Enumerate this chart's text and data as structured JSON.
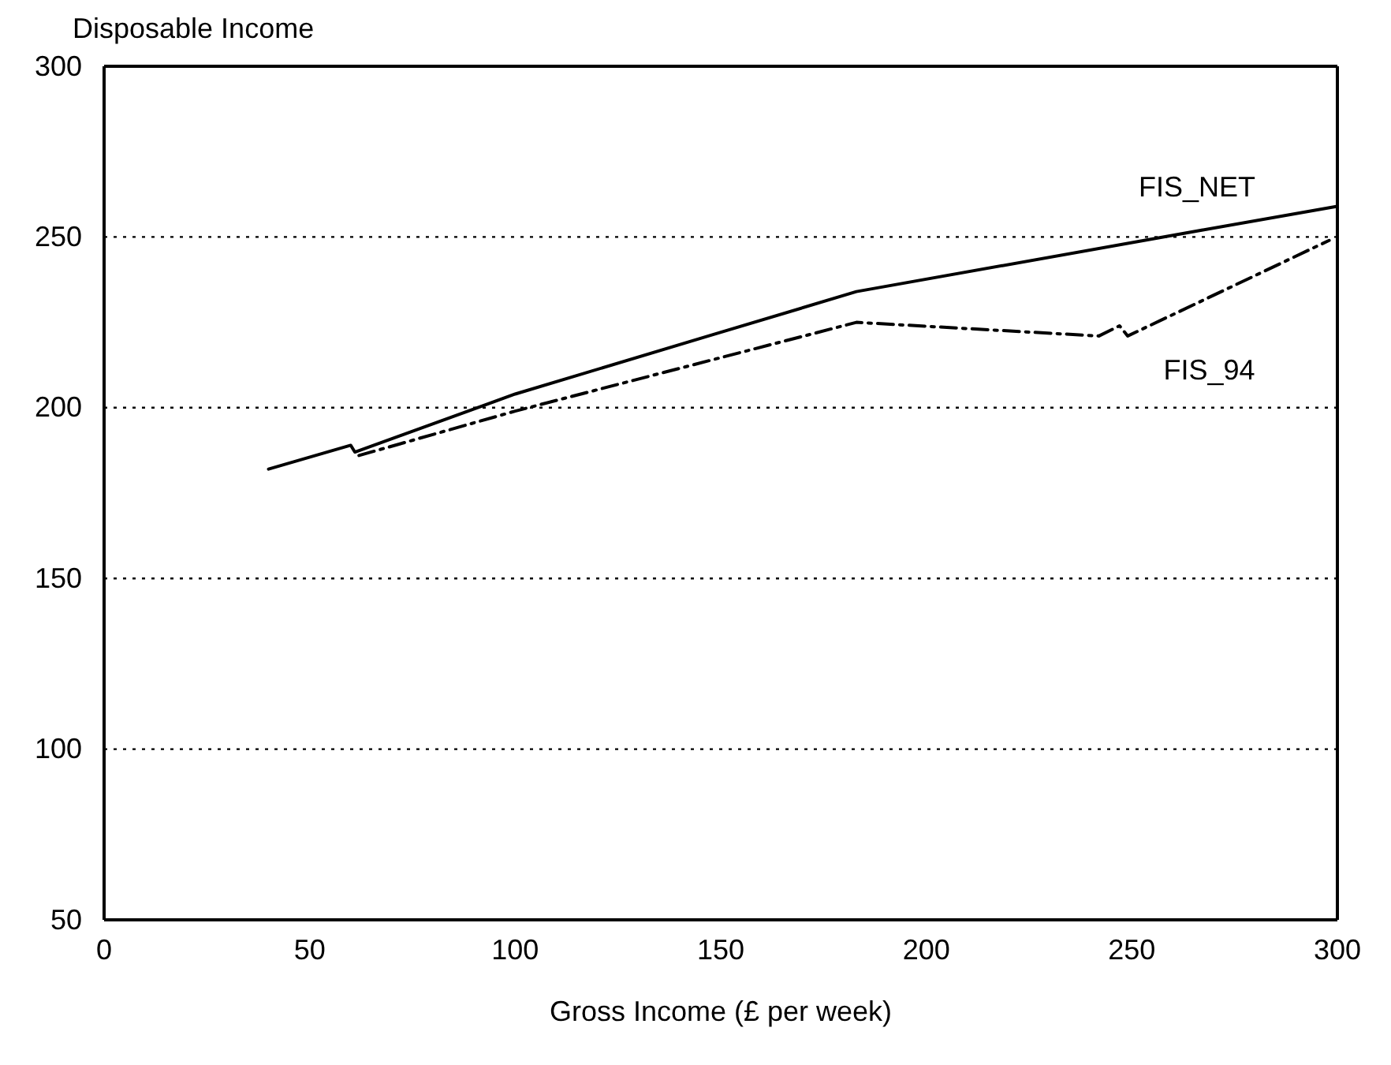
{
  "chart_data": {
    "type": "line",
    "title": null,
    "ylabel": "Disposable Income",
    "xlabel": "Gross Income (£ per week)",
    "xlim": [
      0,
      300
    ],
    "xticks": [
      0,
      50,
      100,
      150,
      200,
      250,
      300
    ],
    "ylim": [
      50,
      300
    ],
    "yticks": [
      50,
      100,
      150,
      200,
      250,
      300
    ],
    "grid": "y",
    "series": [
      {
        "name": "FIS_NET",
        "color": "#000000",
        "line_style": "solid",
        "x": [
          40,
          60,
          61,
          100,
          147,
          183,
          267,
          300
        ],
        "values": [
          182,
          189,
          187,
          204,
          221,
          234,
          252,
          259
        ]
      },
      {
        "name": "FIS_94",
        "color": "#000000",
        "line_style": "dashed",
        "x": [
          62,
          100,
          183,
          242,
          247,
          249,
          298
        ],
        "values": [
          186,
          199,
          225,
          221,
          224,
          221,
          249
        ]
      }
    ]
  }
}
